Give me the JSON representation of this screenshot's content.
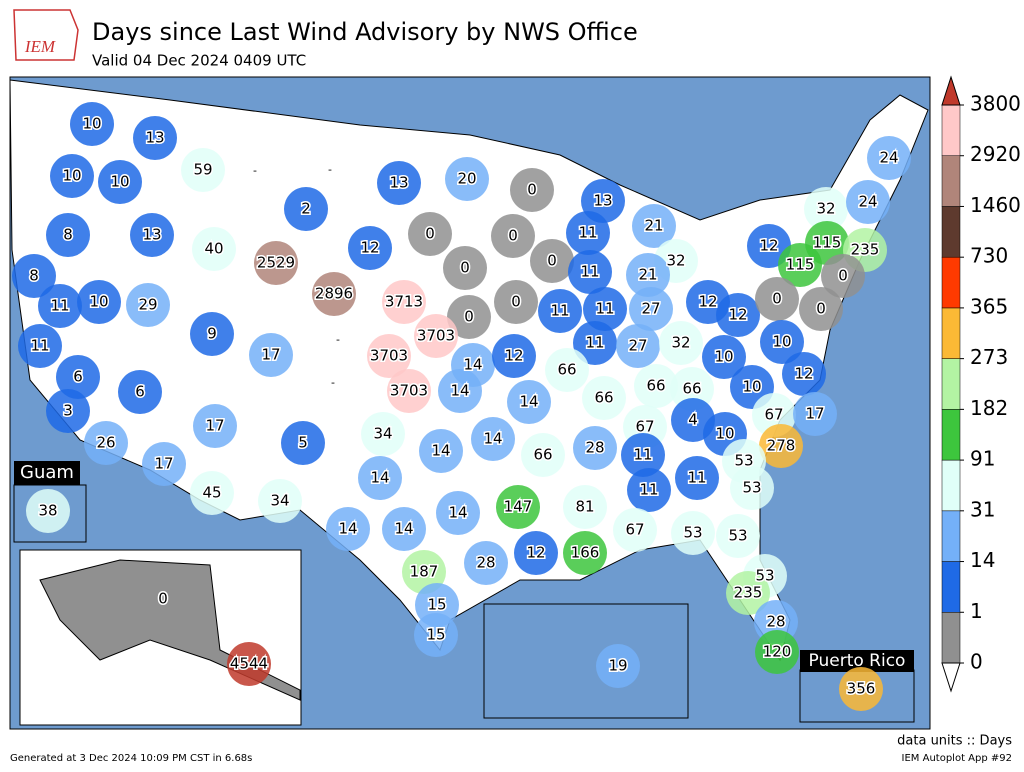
{
  "header": {
    "logo": "IEM",
    "title": "Days since Last Wind Advisory by NWS Office",
    "subtitle": "Valid 04 Dec 2024 0409 UTC"
  },
  "insets": {
    "guam": "Guam",
    "puerto_rico": "Puerto Rico"
  },
  "colorbar": {
    "ticks": [
      0,
      1,
      14,
      31,
      91,
      182,
      273,
      365,
      730,
      1460,
      2920,
      3800
    ],
    "colors": [
      "#909090",
      "#1f6ae6",
      "#74b0f8",
      "#e0fff8",
      "#3dc63d",
      "#b3f3a3",
      "#fbb935",
      "#ff3a00",
      "#5e3a2e",
      "#b0857a",
      "#ffc8c8"
    ],
    "over_color": "#c0392b",
    "under_color": "#ffffff",
    "units": "data units :: Days"
  },
  "offices": [
    10,
    13,
    59,
    10,
    10,
    8,
    13,
    40,
    2,
    13,
    20,
    0,
    13,
    21,
    32,
    24,
    24,
    12,
    0,
    0,
    0,
    11,
    12,
    115,
    235,
    115,
    0,
    8,
    2529,
    0,
    32,
    21,
    11,
    11,
    10,
    29,
    2896,
    3713,
    0,
    0,
    11,
    11,
    27,
    12,
    12,
    0,
    0,
    9,
    3703,
    11,
    27,
    32,
    10,
    10,
    11,
    17,
    3703,
    14,
    12,
    66,
    66,
    66,
    12,
    6,
    6,
    3703,
    14,
    66,
    10,
    3,
    14,
    67,
    17,
    4,
    17,
    5,
    34,
    14,
    14,
    67,
    10,
    278,
    26,
    28,
    66,
    11,
    53,
    17,
    14,
    11,
    53,
    45,
    34,
    81,
    11,
    147,
    14,
    14,
    14,
    67,
    53,
    53,
    12,
    166,
    28,
    187,
    53,
    235,
    15,
    28,
    15,
    120,
    19,
    38,
    0,
    4544,
    356
  ],
  "missing_labels": [
    "-",
    "-",
    "-",
    "-"
  ],
  "footer": {
    "generated": "Generated at 3 Dec 2024 10:09 PM CST in 6.68s",
    "app": "IEM Autoplot App #92"
  }
}
